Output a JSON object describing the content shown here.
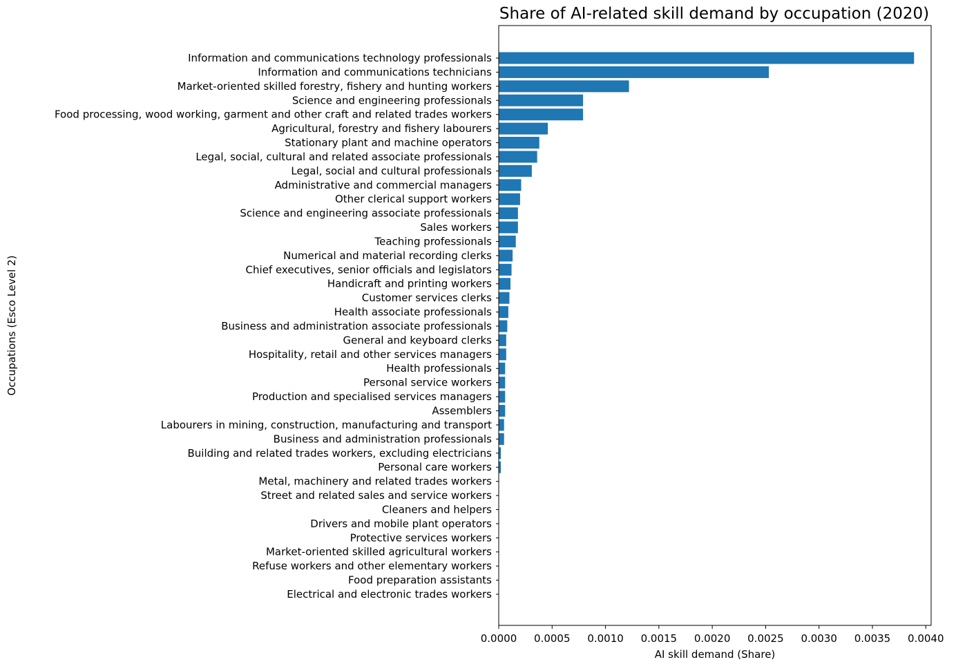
{
  "chart_data": {
    "type": "bar",
    "orientation": "horizontal",
    "title": "Share of AI-related skill demand by occupation (2020)",
    "xlabel": "AI skill demand (Share)",
    "ylabel": "Occupations (Esco Level 2)",
    "xlim": [
      0,
      0.00405
    ],
    "xticks": [
      "0.0000",
      "0.0005",
      "0.0010",
      "0.0015",
      "0.0020",
      "0.0025",
      "0.0030",
      "0.0035",
      "0.0040"
    ],
    "bar_color": "#1f77b4",
    "grid": false,
    "categories": [
      "Information and communications technology professionals",
      "Information and communications technicians",
      "Market-oriented skilled forestry, fishery and hunting workers",
      "Science and engineering professionals",
      "Food processing, wood working, garment and other craft and related trades workers",
      "Agricultural, forestry and fishery labourers",
      "Stationary plant and machine operators",
      "Legal, social, cultural and related associate professionals",
      "Legal, social and cultural professionals",
      "Administrative and commercial managers",
      "Other clerical support workers",
      "Science and engineering associate professionals",
      "Sales workers",
      "Teaching professionals",
      "Numerical and material recording clerks",
      "Chief executives, senior officials and legislators",
      "Handicraft and printing workers",
      "Customer services clerks",
      "Health associate professionals",
      "Business and administration associate professionals",
      "General and keyboard clerks",
      "Hospitality, retail and other services managers",
      "Health professionals",
      "Personal service workers",
      "Production and specialised services managers",
      "Assemblers",
      "Labourers in mining, construction, manufacturing and transport",
      "Business and administration professionals",
      "Building and related trades workers, excluding electricians",
      "Personal care workers",
      "Metal, machinery and related trades workers",
      "Street and related sales and service workers",
      "Cleaners and helpers",
      "Drivers and mobile plant operators",
      "Protective services workers",
      "Market-oriented skilled agricultural workers",
      "Refuse workers and other elementary workers",
      "Food preparation assistants",
      "Electrical and electronic trades workers"
    ],
    "values": [
      0.00389,
      0.00253,
      0.00122,
      0.00079,
      0.00079,
      0.00046,
      0.00038,
      0.00036,
      0.00031,
      0.00021,
      0.0002,
      0.00018,
      0.00018,
      0.00016,
      0.00013,
      0.00012,
      0.00011,
      0.0001,
      9e-05,
      8e-05,
      7e-05,
      7e-05,
      6e-05,
      6e-05,
      6e-05,
      6e-05,
      5e-05,
      5e-05,
      2e-05,
      2e-05,
      8e-07,
      6e-07,
      5e-07,
      4e-07,
      3e-07,
      2e-07,
      2e-07,
      1e-07,
      1e-07
    ]
  }
}
